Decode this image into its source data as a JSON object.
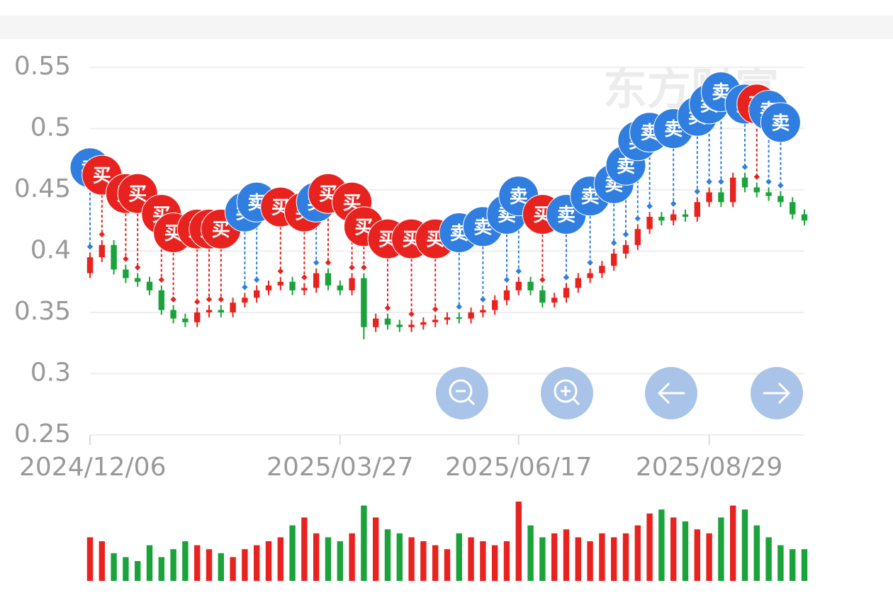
{
  "chart_data": {
    "type": "candlestick",
    "watermark": "东方财富",
    "ylim": [
      0.25,
      0.55
    ],
    "yticks": [
      0.25,
      0.3,
      0.35,
      0.4,
      0.45,
      0.5,
      0.55
    ],
    "xlim": [
      0,
      60
    ],
    "xticks": [
      {
        "value": 0,
        "label": "2024/12/06"
      },
      {
        "value": 21,
        "label": "2025/03/27"
      },
      {
        "value": 36,
        "label": "2025/06/17"
      },
      {
        "value": 52,
        "label": "2025/08/29"
      }
    ],
    "grid": true,
    "up_color": "#e8231f",
    "down_color": "#1aa33a",
    "open": [
      0.382,
      0.395,
      0.405,
      0.385,
      0.378,
      0.375,
      0.368,
      0.352,
      0.345,
      0.342,
      0.35,
      0.352,
      0.35,
      0.358,
      0.362,
      0.368,
      0.372,
      0.375,
      0.368,
      0.37,
      0.382,
      0.372,
      0.368,
      0.378,
      0.338,
      0.345,
      0.34,
      0.338,
      0.34,
      0.342,
      0.344,
      0.346,
      0.345,
      0.35,
      0.352,
      0.36,
      0.368,
      0.375,
      0.368,
      0.358,
      0.362,
      0.37,
      0.378,
      0.382,
      0.388,
      0.398,
      0.405,
      0.418,
      0.428,
      0.425,
      0.43,
      0.428,
      0.44,
      0.448,
      0.44,
      0.46,
      0.452,
      0.448,
      0.445,
      0.44,
      0.43
    ],
    "high": [
      0.399,
      0.409,
      0.409,
      0.389,
      0.382,
      0.379,
      0.372,
      0.356,
      0.349,
      0.354,
      0.356,
      0.356,
      0.362,
      0.366,
      0.372,
      0.376,
      0.379,
      0.379,
      0.374,
      0.386,
      0.386,
      0.376,
      0.382,
      0.382,
      0.349,
      0.349,
      0.344,
      0.344,
      0.346,
      0.348,
      0.35,
      0.35,
      0.354,
      0.356,
      0.364,
      0.372,
      0.379,
      0.379,
      0.372,
      0.366,
      0.374,
      0.382,
      0.386,
      0.392,
      0.402,
      0.409,
      0.422,
      0.432,
      0.432,
      0.434,
      0.434,
      0.444,
      0.452,
      0.452,
      0.464,
      0.464,
      0.456,
      0.452,
      0.449,
      0.444,
      0.434
    ],
    "low": [
      0.378,
      0.391,
      0.381,
      0.374,
      0.371,
      0.364,
      0.348,
      0.341,
      0.338,
      0.338,
      0.346,
      0.346,
      0.346,
      0.354,
      0.358,
      0.364,
      0.368,
      0.364,
      0.364,
      0.366,
      0.368,
      0.364,
      0.364,
      0.328,
      0.334,
      0.336,
      0.334,
      0.334,
      0.336,
      0.338,
      0.34,
      0.341,
      0.341,
      0.346,
      0.348,
      0.356,
      0.364,
      0.364,
      0.354,
      0.354,
      0.358,
      0.366,
      0.374,
      0.378,
      0.384,
      0.394,
      0.401,
      0.414,
      0.421,
      0.421,
      0.424,
      0.424,
      0.436,
      0.436,
      0.436,
      0.448,
      0.444,
      0.441,
      0.436,
      0.426,
      0.421
    ],
    "close": [
      0.395,
      0.405,
      0.385,
      0.378,
      0.375,
      0.368,
      0.352,
      0.345,
      0.342,
      0.35,
      0.352,
      0.35,
      0.358,
      0.362,
      0.368,
      0.372,
      0.375,
      0.368,
      0.37,
      0.382,
      0.372,
      0.368,
      0.378,
      0.338,
      0.345,
      0.34,
      0.338,
      0.34,
      0.342,
      0.344,
      0.346,
      0.345,
      0.35,
      0.352,
      0.36,
      0.368,
      0.375,
      0.368,
      0.358,
      0.362,
      0.37,
      0.378,
      0.382,
      0.388,
      0.398,
      0.405,
      0.418,
      0.428,
      0.425,
      0.43,
      0.428,
      0.44,
      0.448,
      0.44,
      0.46,
      0.452,
      0.448,
      0.445,
      0.44,
      0.43,
      0.425
    ],
    "volume": {
      "ylim": [
        0,
        100
      ],
      "values": [
        55,
        50,
        35,
        30,
        25,
        45,
        30,
        40,
        50,
        45,
        40,
        35,
        30,
        40,
        45,
        50,
        55,
        70,
        80,
        60,
        55,
        50,
        60,
        95,
        80,
        65,
        60,
        55,
        50,
        45,
        40,
        60,
        55,
        50,
        45,
        50,
        100,
        70,
        55,
        60,
        65,
        55,
        50,
        60,
        55,
        60,
        70,
        85,
        90,
        80,
        75,
        65,
        60,
        80,
        95,
        90,
        70,
        55,
        45,
        40,
        40
      ]
    },
    "signal_colors": {
      "buy": "#e8231f",
      "sell": "#2f7ee0"
    },
    "signals": [
      {
        "index": 0,
        "type": "sell",
        "text": "卖",
        "value": 0.468
      },
      {
        "index": 1,
        "type": "buy",
        "text": "买",
        "value": 0.462
      },
      {
        "index": 3,
        "type": "buy",
        "text": "买",
        "value": 0.447
      },
      {
        "index": 4,
        "type": "buy",
        "text": "买",
        "value": 0.447
      },
      {
        "index": 6,
        "type": "buy",
        "text": "买",
        "value": 0.43
      },
      {
        "index": 7,
        "type": "buy",
        "text": "买",
        "value": 0.415
      },
      {
        "index": 9,
        "type": "buy",
        "text": "买",
        "value": 0.418
      },
      {
        "index": 10,
        "type": "buy",
        "text": "买",
        "value": 0.418
      },
      {
        "index": 11,
        "type": "buy",
        "text": "买",
        "value": 0.418
      },
      {
        "index": 13,
        "type": "sell",
        "text": "卖",
        "value": 0.432
      },
      {
        "index": 14,
        "type": "sell",
        "text": "卖",
        "value": 0.44
      },
      {
        "index": 16,
        "type": "buy",
        "text": "买",
        "value": 0.436
      },
      {
        "index": 18,
        "type": "buy",
        "text": "买",
        "value": 0.432
      },
      {
        "index": 19,
        "type": "sell",
        "text": "卖",
        "value": 0.44
      },
      {
        "index": 20,
        "type": "buy",
        "text": "买",
        "value": 0.447
      },
      {
        "index": 22,
        "type": "buy",
        "text": "买",
        "value": 0.44
      },
      {
        "index": 23,
        "type": "buy",
        "text": "买",
        "value": 0.42
      },
      {
        "index": 25,
        "type": "buy",
        "text": "买",
        "value": 0.41
      },
      {
        "index": 27,
        "type": "buy",
        "text": "买",
        "value": 0.41
      },
      {
        "index": 29,
        "type": "buy",
        "text": "买",
        "value": 0.41
      },
      {
        "index": 31,
        "type": "sell",
        "text": "卖",
        "value": 0.415
      },
      {
        "index": 33,
        "type": "sell",
        "text": "卖",
        "value": 0.42
      },
      {
        "index": 35,
        "type": "sell",
        "text": "卖",
        "value": 0.43
      },
      {
        "index": 36,
        "type": "sell",
        "text": "卖",
        "value": 0.445
      },
      {
        "index": 38,
        "type": "buy",
        "text": "买",
        "value": 0.43
      },
      {
        "index": 40,
        "type": "sell",
        "text": "卖",
        "value": 0.43
      },
      {
        "index": 42,
        "type": "sell",
        "text": "卖",
        "value": 0.445
      },
      {
        "index": 44,
        "type": "sell",
        "text": "卖",
        "value": 0.455
      },
      {
        "index": 45,
        "type": "sell",
        "text": "卖",
        "value": 0.47
      },
      {
        "index": 46,
        "type": "sell",
        "text": "卖",
        "value": 0.49
      },
      {
        "index": 47,
        "type": "sell",
        "text": "卖",
        "value": 0.497
      },
      {
        "index": 49,
        "type": "sell",
        "text": "卖",
        "value": 0.5
      },
      {
        "index": 51,
        "type": "sell",
        "text": "卖",
        "value": 0.51
      },
      {
        "index": 52,
        "type": "sell",
        "text": "卖",
        "value": 0.52
      },
      {
        "index": 53,
        "type": "sell",
        "text": "卖",
        "value": 0.53
      },
      {
        "index": 55,
        "type": "sell",
        "text": "卖",
        "value": 0.52
      },
      {
        "index": 56,
        "type": "buy",
        "text": "买",
        "value": 0.52
      },
      {
        "index": 57,
        "type": "sell",
        "text": "卖",
        "value": 0.515
      },
      {
        "index": 58,
        "type": "sell",
        "text": "卖",
        "value": 0.505
      }
    ]
  }
}
